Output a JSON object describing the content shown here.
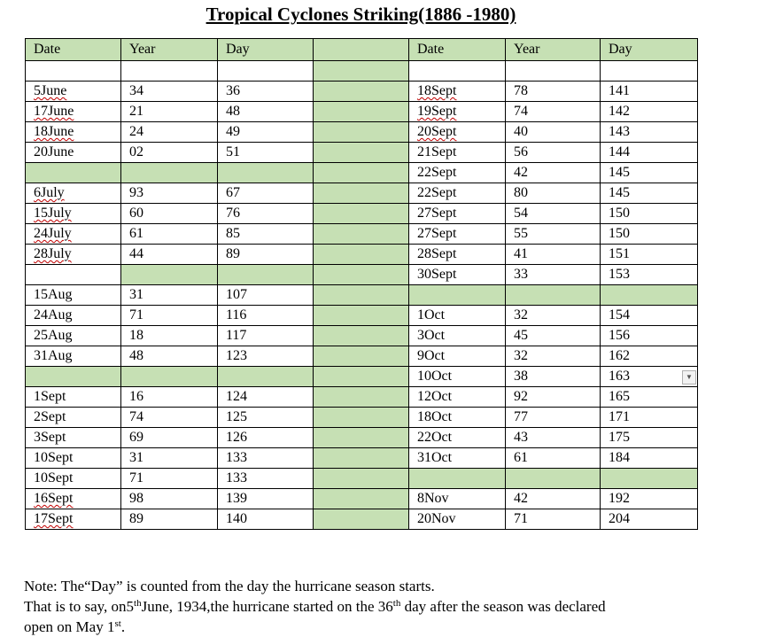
{
  "title": "Tropical Cyclones Striking(1886 -1980)",
  "headers": [
    "Date",
    "Year",
    "Day",
    "",
    "Date",
    "Year",
    "Day"
  ],
  "rows": [
    [
      "",
      "",
      "",
      "",
      "",
      "",
      ""
    ],
    [
      "5June",
      "34",
      "36",
      "",
      "18Sept",
      "78",
      "141"
    ],
    [
      "17June",
      "21",
      "48",
      "",
      "19Sept",
      "74",
      "142"
    ],
    [
      "18June",
      "24",
      "49",
      "",
      "20Sept",
      "40",
      "143"
    ],
    [
      "20June",
      "02",
      "51",
      "",
      "21Sept",
      "56",
      "144"
    ],
    [
      "",
      "",
      "",
      "",
      "22Sept",
      "42",
      "145"
    ],
    [
      "6July",
      "93",
      "67",
      "",
      "22Sept",
      "80",
      "145"
    ],
    [
      "15July",
      "60",
      "76",
      "",
      "27Sept",
      "54",
      "150"
    ],
    [
      "24July",
      "61",
      "85",
      "",
      "27Sept",
      "55",
      "150"
    ],
    [
      "28July",
      "44",
      "89",
      "",
      "28Sept",
      "41",
      "151"
    ],
    [
      "",
      "",
      "",
      "",
      "30Sept",
      "33",
      "153"
    ],
    [
      "15Aug",
      "31",
      "107",
      "",
      "",
      "",
      ""
    ],
    [
      "24Aug",
      "71",
      "116",
      "",
      "1Oct",
      "32",
      "154"
    ],
    [
      "25Aug",
      "18",
      "117",
      "",
      "3Oct",
      "45",
      "156"
    ],
    [
      "31Aug",
      "48",
      "123",
      "",
      "9Oct",
      "32",
      "162"
    ],
    [
      "",
      "",
      "",
      "",
      "10Oct",
      "38",
      "163"
    ],
    [
      "1Sept",
      "16",
      "124",
      "",
      "12Oct",
      "92",
      "165"
    ],
    [
      "2Sept",
      "74",
      "125",
      "",
      "18Oct",
      "77",
      "171"
    ],
    [
      "3Sept",
      "69",
      "126",
      "",
      "22Oct",
      "43",
      "175"
    ],
    [
      "10Sept",
      "31",
      "133",
      "",
      "31Oct",
      "61",
      "184"
    ],
    [
      "10Sept",
      "71",
      "133",
      "",
      "",
      "",
      ""
    ],
    [
      "16Sept",
      "98",
      "139",
      "",
      "8Nov",
      "42",
      "192"
    ],
    [
      "17Sept",
      "89",
      "140",
      "",
      "20Nov",
      "71",
      "204"
    ]
  ],
  "green_cells": [
    [
      0,
      0
    ],
    [
      0,
      1
    ],
    [
      0,
      2
    ],
    [
      0,
      3
    ],
    [
      0,
      4
    ],
    [
      0,
      5
    ],
    [
      0,
      6
    ],
    [
      1,
      3
    ],
    [
      2,
      3
    ],
    [
      3,
      3
    ],
    [
      4,
      3
    ],
    [
      5,
      3
    ],
    [
      6,
      3
    ],
    [
      7,
      3
    ],
    [
      8,
      3
    ],
    [
      9,
      3
    ],
    [
      10,
      3
    ],
    [
      11,
      3
    ],
    [
      12,
      3
    ],
    [
      13,
      3
    ],
    [
      14,
      3
    ],
    [
      15,
      3
    ],
    [
      16,
      3
    ],
    [
      17,
      3
    ],
    [
      18,
      3
    ],
    [
      19,
      3
    ],
    [
      20,
      3
    ],
    [
      21,
      3
    ],
    [
      22,
      3
    ],
    [
      23,
      3
    ],
    [
      6,
      0
    ],
    [
      6,
      1
    ],
    [
      6,
      2
    ],
    [
      11,
      1
    ],
    [
      11,
      2
    ],
    [
      12,
      4
    ],
    [
      12,
      5
    ],
    [
      12,
      6
    ],
    [
      16,
      0
    ],
    [
      16,
      1
    ],
    [
      16,
      2
    ],
    [
      21,
      4
    ],
    [
      21,
      5
    ],
    [
      21,
      6
    ]
  ],
  "spelling_flagged_cells": [
    [
      2,
      0
    ],
    [
      3,
      0
    ],
    [
      4,
      0
    ],
    [
      7,
      0
    ],
    [
      8,
      0
    ],
    [
      9,
      0
    ],
    [
      10,
      0
    ],
    [
      22,
      0
    ],
    [
      23,
      0
    ],
    [
      2,
      4
    ],
    [
      3,
      4
    ],
    [
      4,
      4
    ]
  ],
  "dropdown_cell": [
    16,
    6
  ],
  "dropdown_icon": "chevron-down-icon",
  "colors": {
    "header_fill": "#c6e0b4",
    "spellcheck_underline": "#c00000"
  },
  "note": {
    "line1": "Note: The“Day” is counted from the day the hurricane season starts.",
    "line2_a": "That is to say, on5",
    "line2_sup1": "th",
    "line2_b": "June, 1934,the hurricane started on the 36",
    "line2_sup2": "th",
    "line2_c": " day after the season was declared",
    "line3_a": "open on May 1",
    "line3_sup": "st",
    "line3_b": "."
  }
}
